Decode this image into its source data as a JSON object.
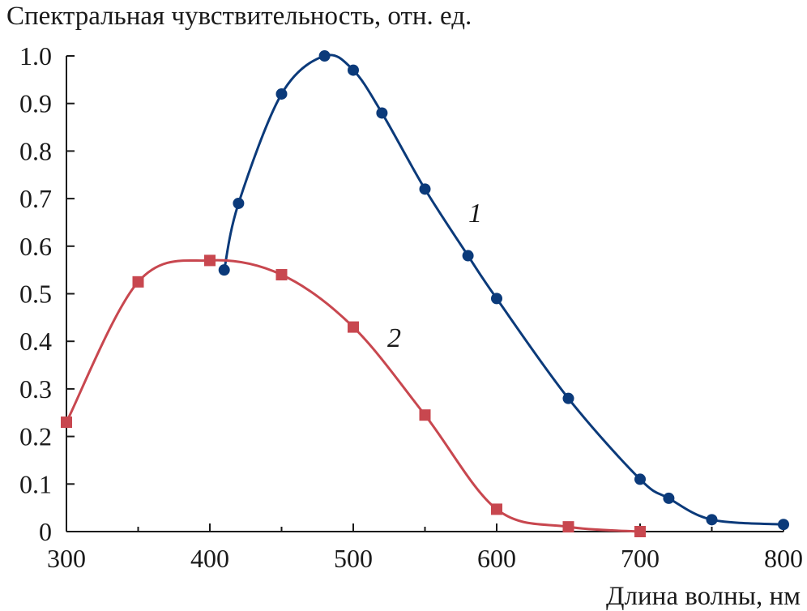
{
  "chart_data": {
    "type": "line",
    "title": "",
    "ylabel": "Спектральная чувствительность, отн. ед.",
    "xlabel": "Длина волны, нм",
    "xlim": [
      300,
      800
    ],
    "ylim": [
      0,
      1.0
    ],
    "x_ticks": [
      "300",
      "400",
      "500",
      "600",
      "700",
      "800"
    ],
    "y_ticks": [
      "0",
      "0.1",
      "0.2",
      "0.3",
      "0.4",
      "0.5",
      "0.6",
      "0.7",
      "0.8",
      "0.9",
      "1.0"
    ],
    "grid": false,
    "legend": "none",
    "series": [
      {
        "name": "1",
        "color": "#0b3a7a",
        "marker": "circle",
        "x": [
          410,
          420,
          450,
          480,
          500,
          520,
          550,
          580,
          600,
          650,
          700,
          720,
          750,
          800
        ],
        "y": [
          0.55,
          0.69,
          0.92,
          1.0,
          0.97,
          0.88,
          0.72,
          0.58,
          0.49,
          0.28,
          0.11,
          0.07,
          0.025,
          0.015
        ]
      },
      {
        "name": "2",
        "color": "#c8474f",
        "marker": "square",
        "x": [
          300,
          350,
          400,
          450,
          500,
          550,
          600,
          650,
          700
        ],
        "y": [
          0.23,
          0.525,
          0.57,
          0.54,
          0.43,
          0.245,
          0.047,
          0.01,
          0.0
        ]
      }
    ]
  }
}
